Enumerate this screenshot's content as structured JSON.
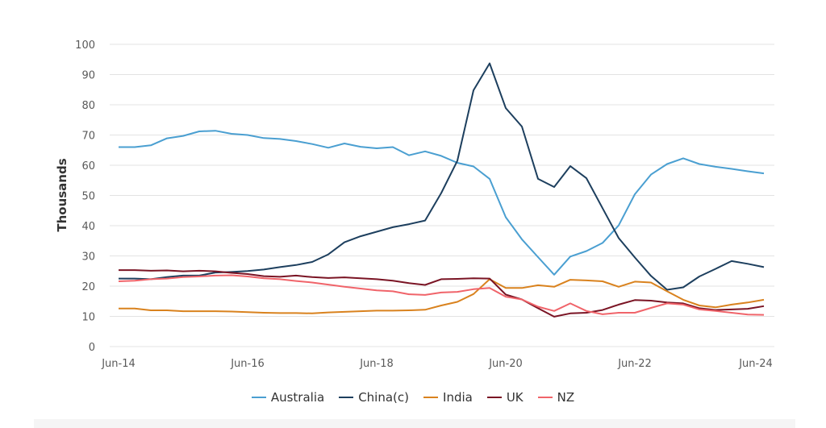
{
  "chart_data": {
    "type": "line",
    "title": "",
    "xlabel": "",
    "ylabel": "Thousands",
    "ylim": [
      0,
      100
    ],
    "yticks": [
      0,
      10,
      20,
      30,
      40,
      50,
      60,
      70,
      80,
      90,
      100
    ],
    "xtick_labels": [
      "Jun-14",
      "Jun-16",
      "Jun-18",
      "Jun-20",
      "Jun-22",
      "Jun-24"
    ],
    "grid": "horizontal",
    "legend_position": "bottom",
    "x": [
      "Jun-14",
      "Sep-14",
      "Dec-14",
      "Mar-15",
      "Jun-15",
      "Sep-15",
      "Dec-15",
      "Mar-16",
      "Jun-16",
      "Sep-16",
      "Dec-16",
      "Mar-17",
      "Jun-17",
      "Sep-17",
      "Dec-17",
      "Mar-18",
      "Jun-18",
      "Sep-18",
      "Dec-18",
      "Mar-19",
      "Jun-19",
      "Sep-19",
      "Dec-19",
      "Mar-20",
      "Jun-20",
      "Sep-20",
      "Dec-20",
      "Mar-21",
      "Jun-21",
      "Sep-21",
      "Dec-21",
      "Mar-22",
      "Jun-22",
      "Sep-22",
      "Dec-22",
      "Mar-23",
      "Jun-23",
      "Sep-23",
      "Dec-23",
      "Mar-24",
      "Jun-24"
    ],
    "series": [
      {
        "name": "Australia",
        "color": "#4a9fd1",
        "values": [
          66,
          66,
          66.6,
          68.9,
          69.7,
          71.2,
          71.4,
          70.4,
          70,
          69,
          68.7,
          68,
          67,
          65.8,
          67.2,
          66.1,
          65.6,
          66,
          63.3,
          64.6,
          63.1,
          60.8,
          59.6,
          55.5,
          42.8,
          35.5,
          29.6,
          23.8,
          29.8,
          31.6,
          34.3,
          40.1,
          50.4,
          56.9,
          60.4,
          62.3,
          60.4,
          59.5,
          58.8,
          58,
          57.3
        ]
      },
      {
        "name": "China(c)",
        "color": "#1d3f5e",
        "values": [
          22.5,
          22.5,
          22.3,
          23,
          23.5,
          23.5,
          24.5,
          24.7,
          25,
          25.5,
          26.3,
          27,
          28,
          30.5,
          34.5,
          36.5,
          38,
          39.5,
          40.5,
          41.7,
          50.8,
          61.5,
          84.8,
          93.7,
          78.9,
          72.8,
          55.5,
          52.8,
          59.7,
          55.7,
          45.8,
          35.9,
          29.5,
          23.4,
          18.8,
          19.6,
          23.2,
          25.7,
          28.3,
          27.4,
          26.3
        ]
      },
      {
        "name": "India",
        "color": "#d9821e",
        "values": [
          12.6,
          12.6,
          12,
          12,
          11.7,
          11.7,
          11.7,
          11.6,
          11.4,
          11.2,
          11.1,
          11.1,
          11,
          11.3,
          11.5,
          11.7,
          11.9,
          11.9,
          12,
          12.2,
          13.6,
          14.8,
          17.4,
          22.3,
          19.4,
          19.4,
          20.3,
          19.8,
          22.1,
          21.9,
          21.6,
          19.8,
          21.5,
          21.2,
          18.3,
          15.5,
          13.6,
          13,
          13.9,
          14.6,
          15.5
        ]
      },
      {
        "name": "UK",
        "color": "#7a1424",
        "values": [
          25.3,
          25.3,
          25.1,
          25.2,
          24.9,
          25.1,
          24.9,
          24.4,
          24,
          23.3,
          23.1,
          23.5,
          23,
          22.7,
          22.9,
          22.6,
          22.3,
          21.8,
          21,
          20.4,
          22.3,
          22.4,
          22.6,
          22.5,
          17.2,
          15.6,
          12.7,
          9.9,
          11,
          11.2,
          12.1,
          13.9,
          15.4,
          15.2,
          14.6,
          14.3,
          12.7,
          12.1,
          12.3,
          12.5,
          13.4
        ]
      },
      {
        "name": "NZ",
        "color": "#f0646a",
        "values": [
          21.6,
          21.8,
          22.3,
          22.5,
          23,
          23.2,
          23.5,
          23.6,
          23.2,
          22.6,
          22.3,
          21.7,
          21.2,
          20.5,
          19.8,
          19.2,
          18.6,
          18.3,
          17.3,
          17.1,
          17.9,
          18.1,
          19,
          19.4,
          16.5,
          15.6,
          13.2,
          11.8,
          14.3,
          11.8,
          10.7,
          11.2,
          11.2,
          12.8,
          14.3,
          13.9,
          12.3,
          11.8,
          11.2,
          10.6,
          10.5
        ]
      }
    ]
  }
}
